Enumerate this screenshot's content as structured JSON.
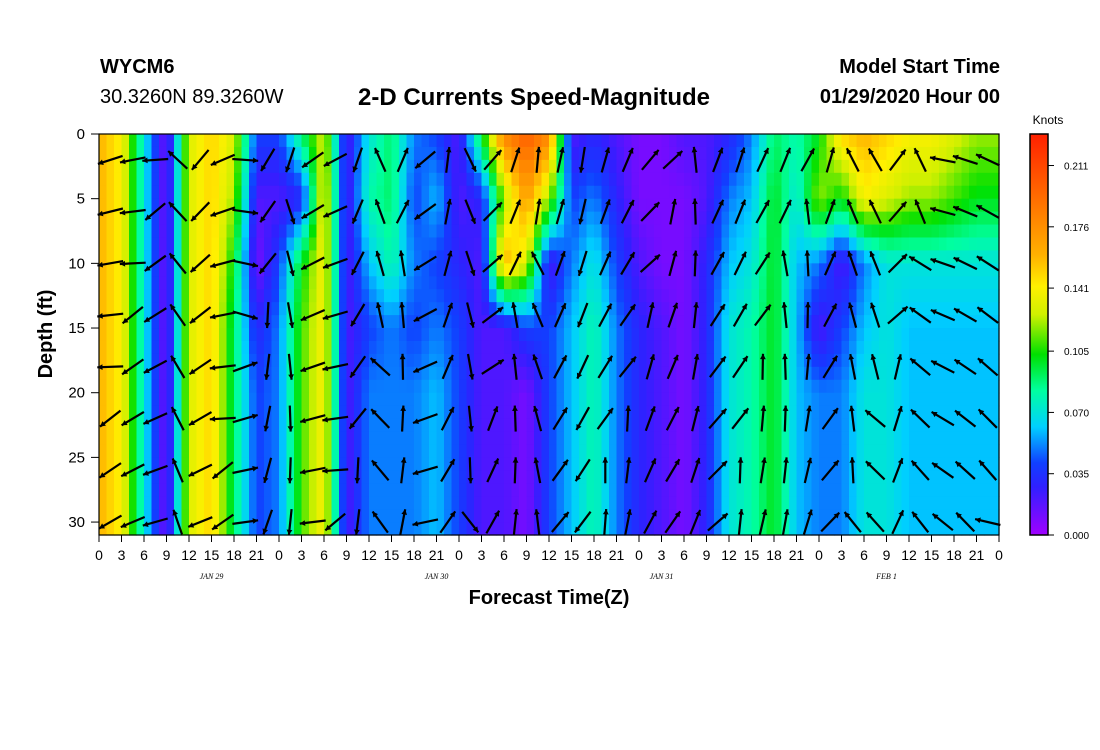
{
  "header": {
    "station": "WYCM6",
    "coords": "30.3260N 89.3260W",
    "title": "2-D Currents Speed-Magnitude",
    "model_start_label": "Model Start Time",
    "model_start_value": "01/29/2020 Hour 00"
  },
  "colors": {
    "scale": [
      "#a000ff",
      "#3020ff",
      "#00d0ff",
      "#00e000",
      "#fff000",
      "#ff8000",
      "#ff2000"
    ]
  },
  "chart_data": {
    "type": "heatmap",
    "title": "2-D Currents Speed-Magnitude",
    "xlabel": "Forecast Time(Z)",
    "ylabel": "Depth (ft)",
    "xlim": [
      0,
      120
    ],
    "ylim": [
      31,
      0
    ],
    "x_tick_values": [
      0,
      3,
      6,
      9,
      12,
      15,
      18,
      21,
      24,
      27,
      30,
      33,
      36,
      39,
      42,
      45,
      48,
      51,
      54,
      57,
      60,
      63,
      66,
      69,
      72,
      75,
      78,
      81,
      84,
      87,
      90,
      93,
      96,
      99,
      102,
      105,
      108,
      111,
      114,
      117,
      120
    ],
    "x_tick_labels": [
      "0",
      "3",
      "6",
      "9",
      "12",
      "15",
      "18",
      "21",
      "0",
      "3",
      "6",
      "9",
      "12",
      "15",
      "18",
      "21",
      "0",
      "3",
      "6",
      "9",
      "12",
      "15",
      "18",
      "21",
      "0",
      "3",
      "6",
      "9",
      "12",
      "15",
      "18",
      "21",
      "0",
      "3",
      "6",
      "9",
      "12",
      "15",
      "18",
      "21",
      "0"
    ],
    "day_labels": [
      {
        "x": 15,
        "label": "JAN 29"
      },
      {
        "x": 45,
        "label": "JAN 30"
      },
      {
        "x": 75,
        "label": "JAN 31"
      },
      {
        "x": 105,
        "label": "FEB 1"
      }
    ],
    "y_tick_values": [
      0,
      5,
      10,
      15,
      20,
      25,
      30
    ],
    "y_tick_labels": [
      "0",
      "5",
      "10",
      "15",
      "20",
      "25",
      "30"
    ],
    "colorbar": {
      "label": "Knots",
      "min": 0.0,
      "max": 0.229,
      "tick_values": [
        0.0,
        0.035,
        0.07,
        0.105,
        0.141,
        0.176,
        0.211
      ],
      "tick_labels": [
        "0.000",
        "0.035",
        "0.070",
        "0.105",
        "0.141",
        "0.176",
        "0.211"
      ]
    },
    "times": [
      0,
      3,
      6,
      9,
      12,
      15,
      18,
      21,
      24,
      27,
      30,
      33,
      36,
      39,
      42,
      45,
      48,
      51,
      54,
      57,
      60,
      63,
      66,
      69,
      72,
      75,
      78,
      81,
      84,
      87,
      90,
      93,
      96,
      99,
      102,
      105,
      108,
      111,
      114,
      117,
      120
    ],
    "depths": [
      0,
      5,
      10,
      15,
      20,
      25,
      30
    ],
    "speed_knots": [
      [
        0.16,
        0.16,
        0.16,
        0.16,
        0.16,
        0.16,
        0.16
      ],
      [
        0.14,
        0.14,
        0.14,
        0.14,
        0.14,
        0.14,
        0.14
      ],
      [
        0.07,
        0.07,
        0.07,
        0.07,
        0.07,
        0.07,
        0.07
      ],
      [
        0.01,
        0.01,
        0.01,
        0.01,
        0.01,
        0.01,
        0.01
      ],
      [
        0.13,
        0.13,
        0.13,
        0.13,
        0.13,
        0.13,
        0.13
      ],
      [
        0.15,
        0.15,
        0.15,
        0.15,
        0.15,
        0.15,
        0.15
      ],
      [
        0.13,
        0.12,
        0.1,
        0.09,
        0.09,
        0.09,
        0.09
      ],
      [
        0.04,
        0.02,
        0.01,
        0.03,
        0.04,
        0.04,
        0.04
      ],
      [
        0.04,
        0.02,
        0.04,
        0.05,
        0.05,
        0.05,
        0.05
      ],
      [
        0.09,
        0.03,
        0.1,
        0.11,
        0.11,
        0.11,
        0.11
      ],
      [
        0.13,
        0.14,
        0.14,
        0.14,
        0.14,
        0.14,
        0.14
      ],
      [
        0.02,
        0.02,
        0.02,
        0.02,
        0.02,
        0.02,
        0.02
      ],
      [
        0.07,
        0.08,
        0.06,
        0.04,
        0.05,
        0.05,
        0.05
      ],
      [
        0.09,
        0.09,
        0.08,
        0.05,
        0.05,
        0.05,
        0.05
      ],
      [
        0.05,
        0.04,
        0.05,
        0.04,
        0.05,
        0.05,
        0.05
      ],
      [
        0.04,
        0.06,
        0.04,
        0.05,
        0.06,
        0.06,
        0.06
      ],
      [
        0.02,
        0.02,
        0.03,
        0.04,
        0.04,
        0.04,
        0.04
      ],
      [
        0.1,
        0.03,
        0.02,
        0.02,
        0.02,
        0.02,
        0.02
      ],
      [
        0.18,
        0.12,
        0.16,
        0.02,
        0.02,
        0.02,
        0.02
      ],
      [
        0.2,
        0.17,
        0.13,
        0.04,
        0.01,
        0.01,
        0.01
      ],
      [
        0.18,
        0.12,
        0.02,
        0.04,
        0.04,
        0.04,
        0.04
      ],
      [
        0.02,
        0.04,
        0.05,
        0.06,
        0.06,
        0.06,
        0.06
      ],
      [
        0.03,
        0.05,
        0.07,
        0.08,
        0.08,
        0.08,
        0.08
      ],
      [
        0.02,
        0.03,
        0.04,
        0.05,
        0.05,
        0.05,
        0.05
      ],
      [
        0.01,
        0.01,
        0.02,
        0.03,
        0.03,
        0.03,
        0.03
      ],
      [
        0.01,
        0.01,
        0.01,
        0.02,
        0.02,
        0.02,
        0.02
      ],
      [
        0.02,
        0.01,
        0.01,
        0.01,
        0.01,
        0.01,
        0.01
      ],
      [
        0.02,
        0.02,
        0.03,
        0.03,
        0.03,
        0.03,
        0.03
      ],
      [
        0.03,
        0.05,
        0.06,
        0.07,
        0.07,
        0.07,
        0.07
      ],
      [
        0.05,
        0.06,
        0.07,
        0.08,
        0.08,
        0.08,
        0.08
      ],
      [
        0.09,
        0.1,
        0.1,
        0.1,
        0.1,
        0.1,
        0.1
      ],
      [
        0.08,
        0.07,
        0.06,
        0.06,
        0.06,
        0.06,
        0.06
      ],
      [
        0.1,
        0.12,
        0.05,
        0.02,
        0.05,
        0.05,
        0.05
      ],
      [
        0.15,
        0.1,
        0.02,
        0.04,
        0.05,
        0.05,
        0.05
      ],
      [
        0.16,
        0.14,
        0.05,
        0.06,
        0.07,
        0.07,
        0.07
      ],
      [
        0.15,
        0.13,
        0.07,
        0.07,
        0.07,
        0.07,
        0.07
      ],
      [
        0.14,
        0.12,
        0.07,
        0.06,
        0.06,
        0.06,
        0.06
      ],
      [
        0.14,
        0.12,
        0.07,
        0.06,
        0.06,
        0.06,
        0.06
      ],
      [
        0.13,
        0.11,
        0.07,
        0.06,
        0.06,
        0.06,
        0.06
      ],
      [
        0.12,
        0.1,
        0.07,
        0.06,
        0.06,
        0.06,
        0.06
      ],
      [
        0.12,
        0.1,
        0.07,
        0.06,
        0.06,
        0.06,
        0.06
      ]
    ]
  }
}
